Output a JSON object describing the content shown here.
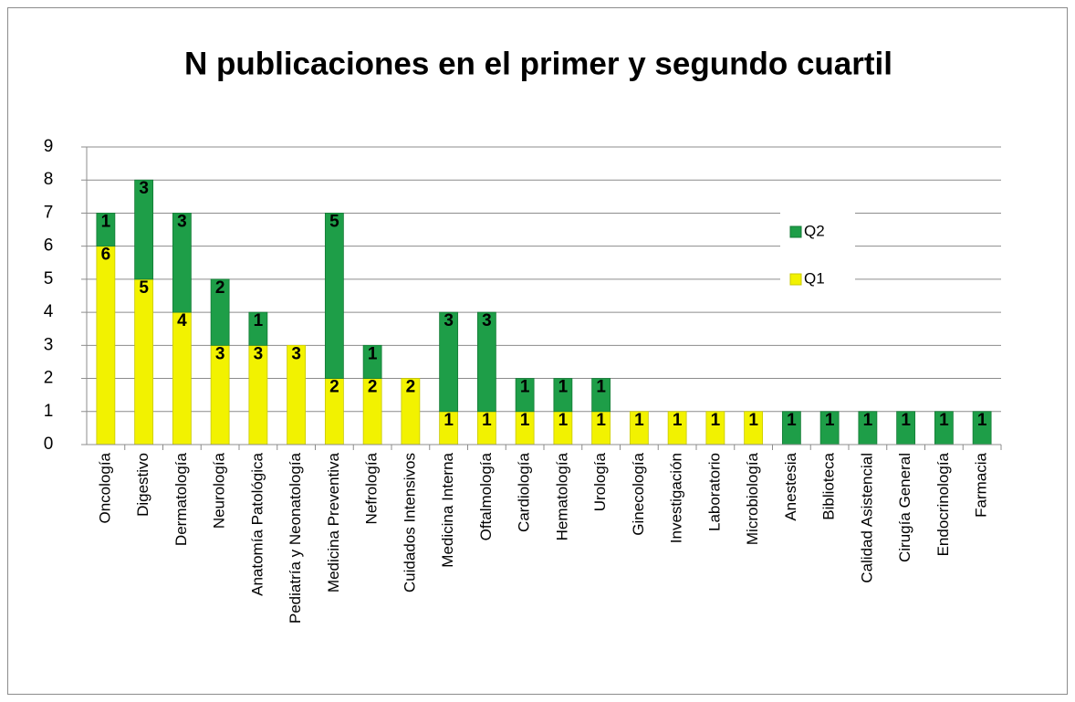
{
  "chart_data": {
    "type": "stacked_bar",
    "title": "N publicaciones en el primer y segundo cuartil",
    "categories": [
      "Oncología",
      "Digestivo",
      "Dermatología",
      "Neurología",
      "Anatomía Patológica",
      "Pediatría y Neonatología",
      "Medicina Preventiva",
      "Nefrología",
      "Cuidados Intensivos",
      "Medicina Interna",
      "Oftalmología",
      "Cardiología",
      "Hematología",
      "Urología",
      "Ginecología",
      "Investigación",
      "Laboratorio",
      "Microbiología",
      "Anestesia",
      "Biblioteca",
      "Calidad Asistencial",
      "Cirugía General",
      "Endocrinología",
      "Farmacia"
    ],
    "series": [
      {
        "name": "Q1",
        "color": "#f2f200",
        "values": [
          6,
          5,
          4,
          3,
          3,
          3,
          2,
          2,
          2,
          1,
          1,
          1,
          1,
          1,
          1,
          1,
          1,
          1,
          0,
          0,
          0,
          0,
          0,
          0
        ]
      },
      {
        "name": "Q2",
        "color": "#1e9e48",
        "values": [
          1,
          3,
          3,
          2,
          1,
          0,
          5,
          1,
          0,
          3,
          3,
          1,
          1,
          1,
          0,
          0,
          0,
          0,
          1,
          1,
          1,
          1,
          1,
          1
        ]
      }
    ],
    "ylim": [
      0,
      9
    ],
    "yticks": [
      0,
      1,
      2,
      3,
      4,
      5,
      6,
      7,
      8,
      9
    ],
    "grid": true,
    "legend": "right"
  }
}
